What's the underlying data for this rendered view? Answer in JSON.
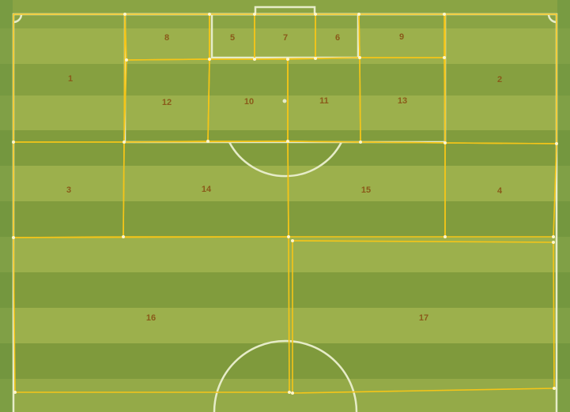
{
  "colors": {
    "grass_light": "#9cb04c",
    "grass_dark": "#7f9a3c",
    "field_line": "#e6ecc8",
    "zone_border": "#f5c518",
    "zone_label": "#8a5a1a"
  },
  "zones": [
    {
      "id": "zone-1",
      "label": "1"
    },
    {
      "id": "zone-2",
      "label": "2"
    },
    {
      "id": "zone-3",
      "label": "3"
    },
    {
      "id": "zone-4",
      "label": "4"
    },
    {
      "id": "zone-5",
      "label": "5"
    },
    {
      "id": "zone-6",
      "label": "6"
    },
    {
      "id": "zone-7",
      "label": "7"
    },
    {
      "id": "zone-8",
      "label": "8"
    },
    {
      "id": "zone-9",
      "label": "9"
    },
    {
      "id": "zone-10",
      "label": "10"
    },
    {
      "id": "zone-11",
      "label": "11"
    },
    {
      "id": "zone-12",
      "label": "12"
    },
    {
      "id": "zone-13",
      "label": "13"
    },
    {
      "id": "zone-14",
      "label": "14"
    },
    {
      "id": "zone-15",
      "label": "15"
    },
    {
      "id": "zone-16",
      "label": "16"
    },
    {
      "id": "zone-17",
      "label": "17"
    }
  ]
}
